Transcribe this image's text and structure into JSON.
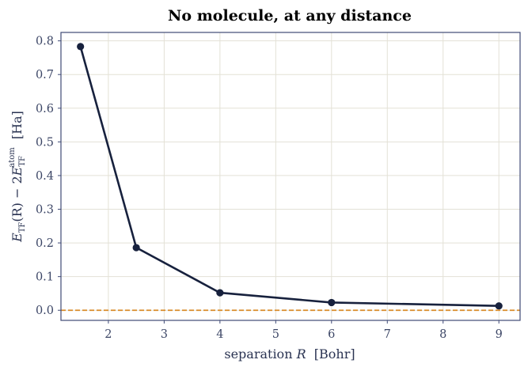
{
  "chart_data": {
    "type": "line",
    "title": "No molecule, at any distance",
    "xlabel": {
      "pre": "separation ",
      "var": "R",
      "post": "  [Bohr]"
    },
    "ylabel": {
      "e1": "E",
      "sub1": "TF",
      "mid": "(R) − 2",
      "e2": "E",
      "sub2": "TF",
      "sup2": "atom",
      "unit": "  [Ha]"
    },
    "xlim": [
      1.15,
      9.38
    ],
    "ylim": [
      -0.03,
      0.825
    ],
    "xticks": [
      2,
      3,
      4,
      5,
      6,
      7,
      8,
      9
    ],
    "yticks": [
      0.0,
      0.1,
      0.2,
      0.3,
      0.4,
      0.5,
      0.6,
      0.7,
      0.8
    ],
    "ytick_labels": [
      "0.0",
      "0.1",
      "0.2",
      "0.3",
      "0.4",
      "0.5",
      "0.6",
      "0.7",
      "0.8"
    ],
    "grid": true,
    "series": [
      {
        "x": [
          1.5,
          2.5,
          4,
          6,
          9
        ],
        "y": [
          0.783,
          0.186,
          0.052,
          0.023,
          0.013
        ],
        "color": "#17213d",
        "marker": "circle"
      }
    ],
    "reference_line": {
      "y": 0.0,
      "color": "#d98c2b",
      "style": "dashed"
    }
  }
}
